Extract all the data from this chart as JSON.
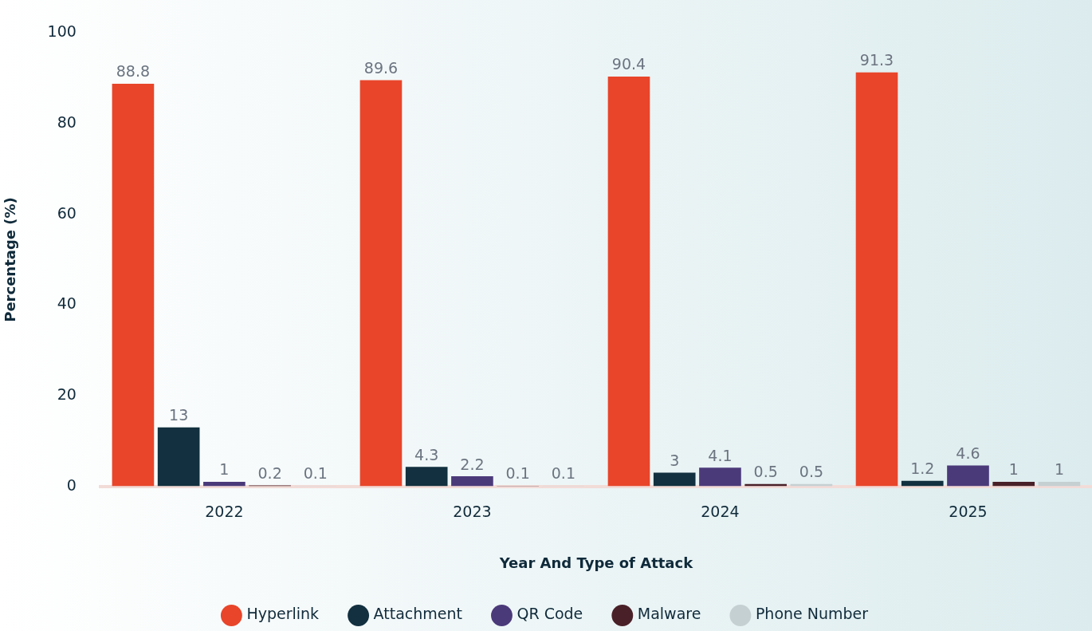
{
  "chart_data": {
    "type": "bar",
    "xlabel": "Year And Type of Attack",
    "ylabel": "Percentage (%)",
    "categories": [
      "2022",
      "2023",
      "2024",
      "2025"
    ],
    "series": [
      {
        "name": "Hyperlink",
        "color": "#e8452a",
        "values": [
          88.8,
          89.6,
          90.4,
          91.3
        ]
      },
      {
        "name": "Attachment",
        "color": "#12303f",
        "values": [
          13,
          4.3,
          3,
          1.2
        ]
      },
      {
        "name": "QR Code",
        "color": "#4b3a7a",
        "values": [
          1,
          2.2,
          4.1,
          4.6
        ]
      },
      {
        "name": "Malware",
        "color": "#4a2028",
        "values": [
          0.2,
          0.1,
          0.5,
          1
        ]
      },
      {
        "name": "Phone Number",
        "color": "#c5d0d2",
        "values": [
          0.1,
          0.1,
          0.5,
          1
        ]
      }
    ],
    "ylim": [
      0,
      100
    ],
    "yticks": [
      0,
      20,
      40,
      60,
      80,
      100
    ],
    "grid": false,
    "legend": "bottom",
    "data_labels": true
  }
}
